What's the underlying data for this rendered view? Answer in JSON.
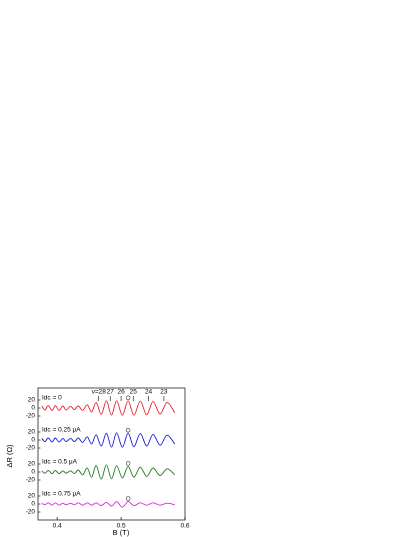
{
  "chart_data": {
    "type": "line",
    "x_label": "B (T)",
    "y_label": "ΔR (Ω)",
    "xlim": [
      0.37,
      0.6
    ],
    "xticks": [
      0.4,
      0.5,
      0.6
    ],
    "ylim": [
      -40,
      40
    ],
    "yticks": [
      20,
      0,
      -20
    ],
    "x": [
      0.376,
      0.381,
      0.386,
      0.392,
      0.397,
      0.403,
      0.409,
      0.414,
      0.421,
      0.427,
      0.433,
      0.44,
      0.447,
      0.454,
      0.461,
      0.469,
      0.477,
      0.485,
      0.493,
      0.502,
      0.511,
      0.52,
      0.53,
      0.54,
      0.55,
      0.561,
      0.572,
      0.584
    ],
    "highlight_x": 0.511,
    "annotations": [
      {
        "text": "ν=28",
        "x": 0.465
      },
      {
        "text": "27",
        "x": 0.483
      },
      {
        "text": "26",
        "x": 0.5
      },
      {
        "text": "25",
        "x": 0.519
      },
      {
        "text": "24",
        "x": 0.543
      },
      {
        "text": "23",
        "x": 0.567
      }
    ],
    "series": [
      {
        "name": "Idc = 0",
        "color": "#e8202a",
        "values": [
          5,
          -5,
          6,
          -6,
          6,
          -6,
          5,
          -5,
          4,
          -4,
          5,
          -6,
          8,
          -10,
          14,
          -16,
          18,
          -18,
          18,
          -18,
          18,
          -18,
          17,
          -17,
          16,
          -15,
          14,
          -12
        ]
      },
      {
        "name": "Idc = 0.25 μA",
        "color": "#1a1adb",
        "values": [
          4,
          -4,
          5,
          -5,
          5,
          -5,
          4,
          -4,
          4,
          -4,
          5,
          -6,
          8,
          -10,
          13,
          -15,
          17,
          -18,
          18,
          -18,
          17,
          -17,
          16,
          -15,
          14,
          -13,
          12,
          -10
        ]
      },
      {
        "name": "Idc = 0.5 μA",
        "color": "#1f7a1f",
        "values": [
          3,
          -3,
          4,
          -4,
          4,
          -4,
          3,
          -3,
          3,
          -4,
          5,
          -7,
          10,
          -13,
          16,
          -18,
          18,
          -17,
          16,
          -15,
          14,
          -13,
          12,
          -11,
          10,
          -9,
          8,
          -7
        ]
      },
      {
        "name": "Idc = 0.75 μA",
        "color": "#e020e0",
        "values": [
          2,
          -2,
          3,
          -3,
          3,
          -3,
          2,
          -2,
          2,
          -2,
          3,
          -3,
          3,
          -3,
          3,
          -4,
          4,
          -5,
          6,
          -8,
          6,
          -4,
          3,
          -3,
          3,
          -3,
          2,
          -2
        ]
      }
    ]
  }
}
